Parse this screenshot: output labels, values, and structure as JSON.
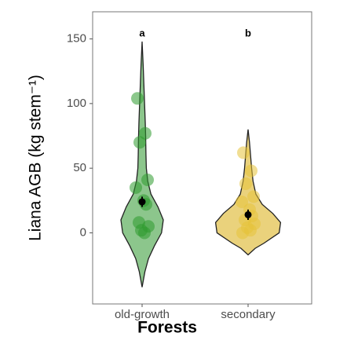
{
  "chart_data": {
    "type": "violin",
    "ylabel": "Liana AGB (kg stem⁻¹)",
    "xlabel": "Forests",
    "categories": [
      "old-growth",
      "secondary"
    ],
    "ylim": [
      -55,
      171
    ],
    "yticks": [
      0,
      50,
      100,
      150
    ],
    "series": [
      {
        "color": "#2e9a2e",
        "fill": "#8cc68c",
        "points": [
          104,
          77,
          70,
          41,
          35,
          25,
          22,
          8,
          5,
          2,
          0
        ],
        "mean": 24,
        "error": 4,
        "letter": "a",
        "violin": {
          "y": [
            148,
            130,
            115,
            100,
            85,
            75,
            60,
            50,
            40,
            30,
            20,
            10,
            0,
            -10,
            -20,
            -30,
            -42
          ],
          "halfwidth": [
            0,
            0.03,
            0.05,
            0.07,
            0.09,
            0.1,
            0.11,
            0.12,
            0.16,
            0.25,
            0.45,
            0.6,
            0.55,
            0.35,
            0.18,
            0.08,
            0
          ]
        }
      },
      {
        "color": "#e6c23a",
        "fill": "#ead27c",
        "points": [
          62,
          48,
          38,
          28,
          24,
          18,
          13,
          10,
          7,
          4,
          2,
          0
        ],
        "mean": 14,
        "error": 4,
        "letter": "b",
        "violin": {
          "y": [
            80,
            70,
            60,
            50,
            40,
            30,
            22,
            15,
            8,
            0,
            -8,
            -12,
            -17
          ],
          "halfwidth": [
            0,
            0.04,
            0.07,
            0.1,
            0.14,
            0.22,
            0.4,
            0.7,
            0.92,
            0.88,
            0.45,
            0.2,
            0
          ]
        }
      }
    ]
  }
}
